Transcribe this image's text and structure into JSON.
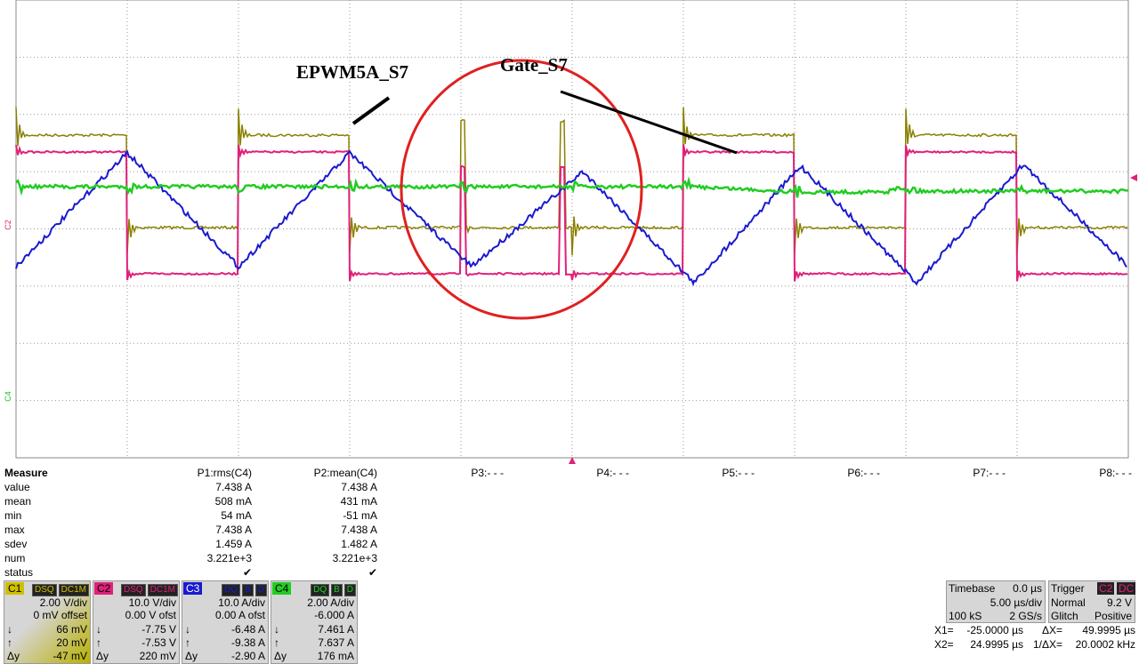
{
  "annotations": [
    "EPWM5A_S7",
    "Gate_S7"
  ],
  "channel_markers": [
    "C2",
    "C4"
  ],
  "measure": {
    "title": "Measure",
    "columns": [
      "P1:rms(C4)",
      "P2:mean(C4)",
      "P3:- - -",
      "P4:- - -",
      "P5:- - -",
      "P6:- - -",
      "P7:- - -",
      "P8:- - -"
    ],
    "row_labels": [
      "value",
      "mean",
      "min",
      "max",
      "sdev",
      "num",
      "status"
    ],
    "rows": [
      [
        "7.438 A",
        "7.438 A"
      ],
      [
        "508 mA",
        "431 mA"
      ],
      [
        "54 mA",
        "-51 mA"
      ],
      [
        "7.438 A",
        "7.438 A"
      ],
      [
        "1.459 A",
        "1.482 A"
      ],
      [
        "3.221e+3",
        "3.221e+3"
      ],
      [
        "✔",
        "✔"
      ]
    ]
  },
  "channels": [
    {
      "label": "C1",
      "badges": [
        "DSQ",
        "DC1M"
      ],
      "lines": [
        "2.00 V/div",
        "0 mV offset"
      ],
      "cursors": [
        [
          "↓",
          "66 mV"
        ],
        [
          "↑",
          "20 mV"
        ],
        [
          "Δy",
          "-47 mV"
        ]
      ]
    },
    {
      "label": "C2",
      "badges": [
        "DSQ",
        "DC1M"
      ],
      "lines": [
        "10.0 V/div",
        "0.00 V ofst"
      ],
      "cursors": [
        [
          "↓",
          "-7.75 V"
        ],
        [
          "↑",
          "-7.53 V"
        ],
        [
          "Δy",
          "220 mV"
        ]
      ]
    },
    {
      "label": "C3",
      "badges": [
        "DQ",
        "B",
        "D"
      ],
      "lines": [
        "10.0 A/div",
        "0.00 A ofst"
      ],
      "cursors": [
        [
          "↓",
          "-6.48 A"
        ],
        [
          "↑",
          "-9.38 A"
        ],
        [
          "Δy",
          "-2.90 A"
        ]
      ]
    },
    {
      "label": "C4",
      "badges": [
        "DQ",
        "B",
        "D"
      ],
      "lines": [
        "2.00 A/div",
        "-6.000 A"
      ],
      "cursors": [
        [
          "↓",
          "7.461 A"
        ],
        [
          "↑",
          "7.637 A"
        ],
        [
          "Δy",
          "176 mA"
        ]
      ]
    }
  ],
  "timebase": {
    "title": "Timebase",
    "delay": "0.0 µs",
    "scale": "5.00 µs/div",
    "samples": "100 kS",
    "rate": "2 GS/s"
  },
  "trigger": {
    "title": "Trigger",
    "source": "C2",
    "coupling": "DC",
    "mode": "Normal",
    "level": "9.2 V",
    "type": "Glitch",
    "slope": "Positive"
  },
  "cursors": [
    [
      "X1=",
      "-25.0000 µs",
      "ΔX=",
      "49.9995 µs"
    ],
    [
      "X2=",
      "24.9995 µs",
      "1/ΔX=",
      "20.0002 kHz"
    ]
  ]
}
